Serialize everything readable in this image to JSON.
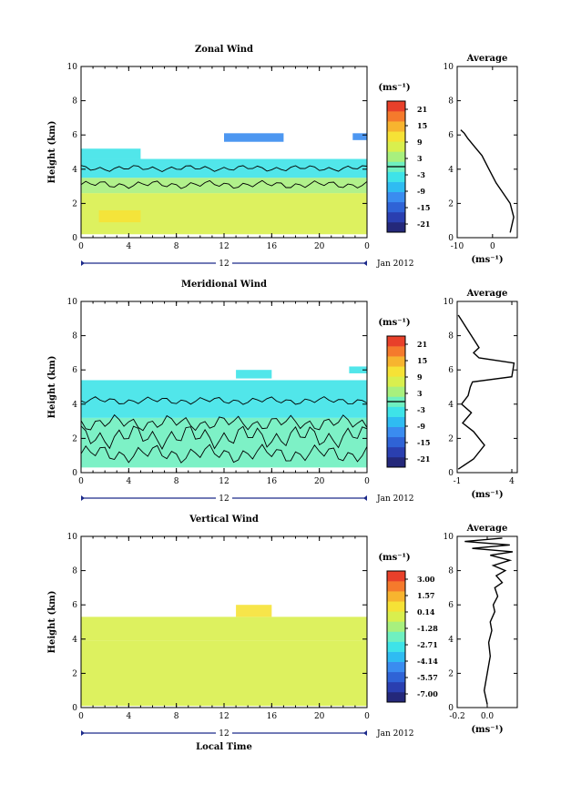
{
  "colorbar_colors": [
    "#24287a",
    "#2a3fb0",
    "#2f63d6",
    "#3a8cf0",
    "#2fbcf2",
    "#3ee3e8",
    "#6ff0c0",
    "#a8f07e",
    "#d9ef4e",
    "#f6e236",
    "#f7b42f",
    "#f57a2c",
    "#e8402a"
  ],
  "chart_data": [
    {
      "type": "heatmap",
      "title": "Zonal Wind",
      "xlabel": "",
      "ylabel": "Height (km)",
      "xlim": [
        0,
        24
      ],
      "ylim": [
        0,
        10
      ],
      "xticks": [
        "0",
        "4",
        "8",
        "12",
        "16",
        "20",
        "0"
      ],
      "yticks": [
        "0",
        "2",
        "4",
        "6",
        "8",
        "10"
      ],
      "date_bar": {
        "label": "12",
        "side_label": "Jan 2012"
      },
      "colorbar": {
        "unit": "(ms⁻¹)",
        "ticks": [
          "21",
          "15",
          "9",
          "3",
          "-3",
          "-9",
          "-15",
          "-21"
        ]
      },
      "layers": [
        {
          "x": [
            0,
            24
          ],
          "y": [
            0.2,
            2.6
          ],
          "value": 6
        },
        {
          "x": [
            1.5,
            5
          ],
          "y": [
            0.9,
            1.6
          ],
          "value": 10
        },
        {
          "x": [
            0,
            24
          ],
          "y": [
            2.6,
            3.5
          ],
          "value": 3
        },
        {
          "x": [
            0,
            24
          ],
          "y": [
            3.5,
            4.6
          ],
          "value": -4
        },
        {
          "x": [
            0,
            5
          ],
          "y": [
            4.6,
            5.2
          ],
          "value": -5
        },
        {
          "x": [
            12,
            17
          ],
          "y": [
            5.6,
            6.1
          ],
          "value": -10
        },
        {
          "x": [
            22.8,
            24
          ],
          "y": [
            5.7,
            6.1
          ],
          "value": -10
        }
      ],
      "contours": [
        {
          "y": 3.1,
          "amp": 0.15
        },
        {
          "y": 4.05,
          "amp": 0.12
        }
      ]
    },
    {
      "type": "line",
      "title": "Average",
      "xlabel": "(ms⁻¹)",
      "xlim": [
        -10,
        7
      ],
      "ylim": [
        0,
        10
      ],
      "xticks": [
        "-10",
        "0"
      ],
      "yticks": [
        "0",
        "2",
        "4",
        "6",
        "8",
        "10"
      ],
      "series": [
        {
          "x": [
            5,
            6,
            5,
            3,
            1,
            -1,
            -3,
            -5,
            -7,
            -8,
            -9
          ],
          "y": [
            0.3,
            1.2,
            2.0,
            2.6,
            3.2,
            4.0,
            4.8,
            5.3,
            5.8,
            6.1,
            6.3
          ]
        }
      ]
    },
    {
      "type": "heatmap",
      "title": "Meridional Wind",
      "xlabel": "",
      "ylabel": "Height (km)",
      "xlim": [
        0,
        24
      ],
      "ylim": [
        0,
        10
      ],
      "xticks": [
        "0",
        "4",
        "8",
        "12",
        "16",
        "20",
        "0"
      ],
      "yticks": [
        "0",
        "2",
        "4",
        "6",
        "8",
        "10"
      ],
      "date_bar": {
        "label": "12",
        "side_label": "Jan 2012"
      },
      "colorbar": {
        "unit": "(ms⁻¹)",
        "ticks": [
          "21",
          "15",
          "9",
          "3",
          "-3",
          "-9",
          "-15",
          "-21"
        ]
      },
      "layers": [
        {
          "x": [
            0,
            24
          ],
          "y": [
            0.3,
            3.2
          ],
          "value": -1
        },
        {
          "x": [
            0,
            24
          ],
          "y": [
            3.2,
            5.4
          ],
          "value": -4
        },
        {
          "x": [
            13,
            16
          ],
          "y": [
            5.5,
            6.0
          ],
          "value": -4
        },
        {
          "x": [
            22.5,
            24
          ],
          "y": [
            5.8,
            6.2
          ],
          "value": -4
        }
      ],
      "contours": [
        {
          "y": 1.1,
          "amp": 0.35
        },
        {
          "y": 2.1,
          "amp": 0.45
        },
        {
          "y": 2.9,
          "amp": 0.3
        },
        {
          "y": 4.2,
          "amp": 0.15
        }
      ]
    },
    {
      "type": "line",
      "title": "Average",
      "xlabel": "(ms⁻¹)",
      "xlim": [
        -1,
        4.5
      ],
      "ylim": [
        0,
        10
      ],
      "xticks": [
        "-1",
        "4"
      ],
      "yticks": [
        "0",
        "2",
        "4",
        "6",
        "8",
        "10"
      ],
      "series": [
        {
          "x": [
            -0.9,
            0.5,
            1.5,
            0.5,
            -0.5,
            0.3,
            -0.6,
            0.0,
            0.2,
            0.4,
            4.0,
            4.2,
            1.0,
            0.5,
            1.0,
            -0.9
          ],
          "y": [
            0.2,
            0.8,
            1.6,
            2.4,
            2.9,
            3.5,
            4.0,
            4.5,
            5.0,
            5.3,
            5.6,
            6.4,
            6.7,
            7.0,
            7.3,
            9.2
          ]
        }
      ]
    },
    {
      "type": "heatmap",
      "title": "Vertical Wind",
      "xlabel": "Local Time",
      "ylabel": "Height (km)",
      "xlim": [
        0,
        24
      ],
      "ylim": [
        0,
        10
      ],
      "xticks": [
        "0",
        "4",
        "8",
        "12",
        "16",
        "20",
        "0"
      ],
      "yticks": [
        "0",
        "2",
        "4",
        "6",
        "8",
        "10"
      ],
      "date_bar": {
        "label": "12",
        "side_label": "Jan 2012"
      },
      "colorbar": {
        "unit": "(ms⁻¹)",
        "ticks": [
          "3.00",
          "1.57",
          "0.14",
          "-1.28",
          "-2.71",
          "-4.14",
          "-5.57",
          "-7.00"
        ]
      },
      "layers": [
        {
          "x": [
            0,
            24
          ],
          "y": [
            0.1,
            3.9
          ],
          "value": 0.14
        },
        {
          "x": [
            0,
            24
          ],
          "y": [
            3.9,
            5.3
          ],
          "value": 0.14
        },
        {
          "x": [
            13,
            16
          ],
          "y": [
            5.3,
            6.0
          ],
          "value": 0.6
        }
      ],
      "contours": []
    },
    {
      "type": "line",
      "title": "Average",
      "xlabel": "(ms⁻¹)",
      "xlim": [
        -0.2,
        0.2
      ],
      "ylim": [
        0,
        10
      ],
      "xticks": [
        "-0.2",
        "0.0"
      ],
      "yticks": [
        "0",
        "2",
        "4",
        "6",
        "8",
        "10"
      ],
      "series": [
        {
          "x": [
            0.0,
            -0.02,
            0.0,
            0.02,
            0.01,
            0.03,
            0.02,
            0.05,
            0.04,
            0.07,
            0.05,
            0.1,
            0.06,
            0.12,
            0.04,
            0.15,
            0.02,
            0.17,
            -0.1,
            0.15,
            -0.15,
            0.1
          ],
          "y": [
            0.2,
            1.0,
            2.0,
            3.0,
            3.8,
            4.5,
            5.0,
            5.6,
            6.0,
            6.5,
            7.0,
            7.3,
            7.7,
            8.0,
            8.3,
            8.6,
            8.9,
            9.1,
            9.3,
            9.5,
            9.7,
            9.9
          ]
        }
      ]
    }
  ]
}
